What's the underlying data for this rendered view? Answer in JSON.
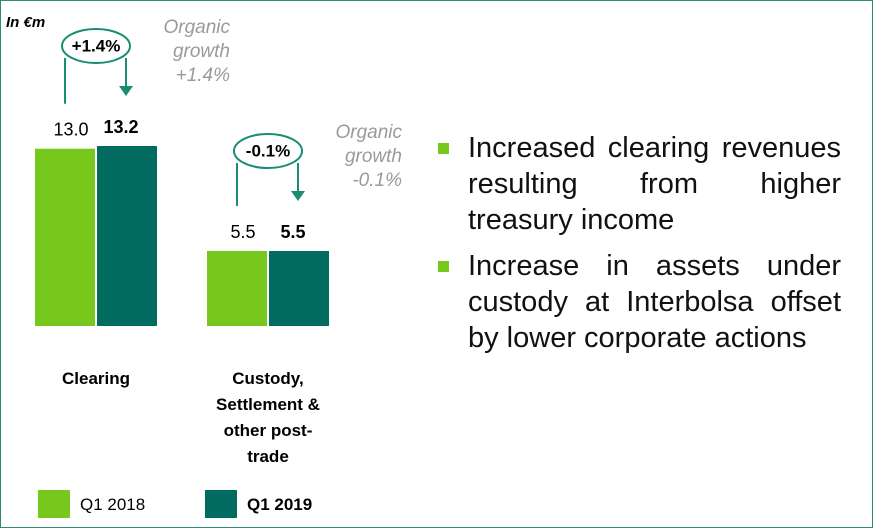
{
  "chart_data": {
    "type": "bar",
    "unit_label": "In €m",
    "categories": [
      "Clearing",
      "Custody, Settlement & other post-trade"
    ],
    "series": [
      {
        "name": "Q1 2018",
        "color": "#76c81c",
        "values": [
          13.0,
          5.5
        ],
        "value_labels": [
          "13.0",
          "5.5"
        ]
      },
      {
        "name": "Q1 2019",
        "color": "#006b5e",
        "values": [
          13.2,
          5.5
        ],
        "value_labels": [
          "13.2",
          "5.5"
        ]
      }
    ],
    "annotations": [
      {
        "label": "+1.4%",
        "note": "Organic growth +1.4%"
      },
      {
        "label": "-0.1%",
        "note": "Organic growth -0.1%"
      }
    ]
  },
  "bullets": [
    "Increased clearing revenues resulting from higher treasury income",
    "Increase in assets under custody at Interbolsa offset by lower corporate actions"
  ]
}
